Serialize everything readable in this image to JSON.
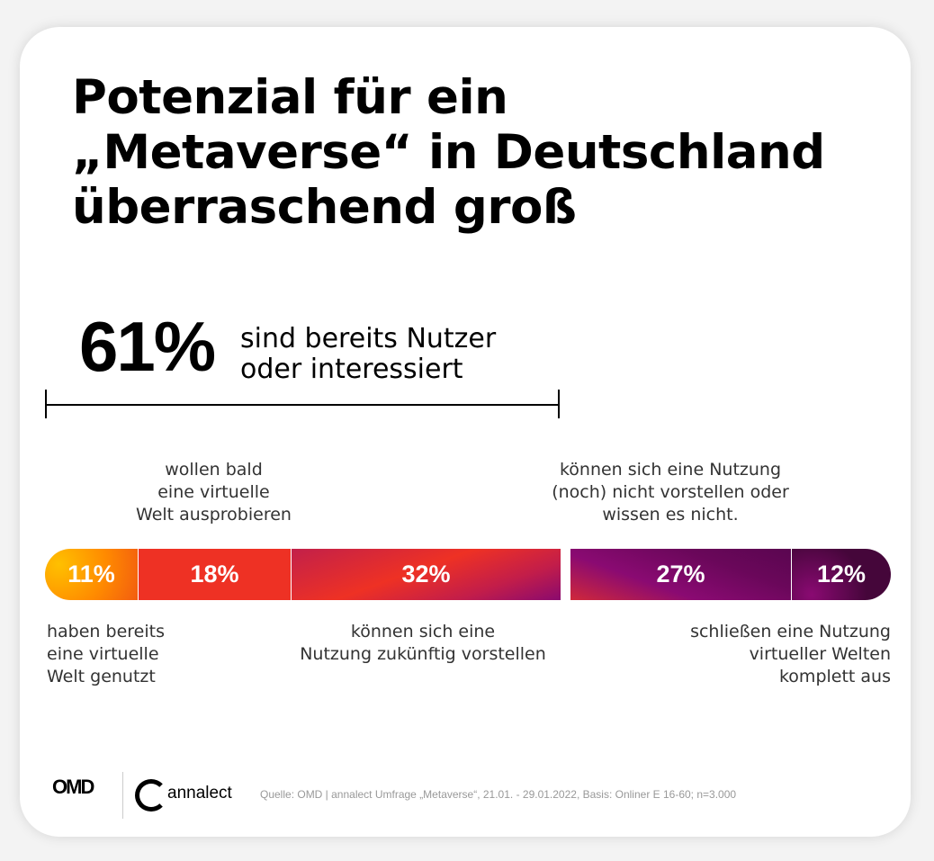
{
  "title_lines": [
    "Potenzial für ein",
    "„Metaverse“ in Deutschland",
    "überraschend groß"
  ],
  "headline": {
    "value": "61%",
    "label_lines": [
      "sind bereits Nutzer",
      "oder interessiert"
    ]
  },
  "annotations": {
    "top_left": [
      "wollen bald",
      "eine virtuelle",
      "Welt ausprobieren"
    ],
    "top_right": [
      "können sich eine  Nutzung",
      "(noch) nicht vorstellen oder",
      "wissen es nicht."
    ],
    "bottom_1": [
      "haben bereits",
      "eine virtuelle",
      "Welt genutzt"
    ],
    "bottom_2": [
      "können sich eine",
      "Nutzung zukünftig vorstellen"
    ],
    "bottom_3": [
      "schließen eine Nutzung",
      "virtueller Welten",
      "komplett aus"
    ]
  },
  "chart_data": {
    "type": "bar",
    "orientation": "horizontal-stacked",
    "unit": "%",
    "segments": [
      {
        "label": "11%",
        "value": 11,
        "color": "#ff8a00"
      },
      {
        "label": "18%",
        "value": 18,
        "color": "#ee3124"
      },
      {
        "label": "32%",
        "value": 32,
        "color": "#c21d4a"
      },
      {
        "label": "27%",
        "value": 27,
        "color": "#7a0a6a"
      },
      {
        "label": "12%",
        "value": 12,
        "color": "#45063a"
      }
    ]
  },
  "footer": {
    "logo_omd": "OMD",
    "logo_annalect": "annalect",
    "source": "Quelle: OMD | annalect Umfrage „Metaverse“, 21.01. - 29.01.2022, Basis: Onliner E 16-60; n=3.000"
  }
}
